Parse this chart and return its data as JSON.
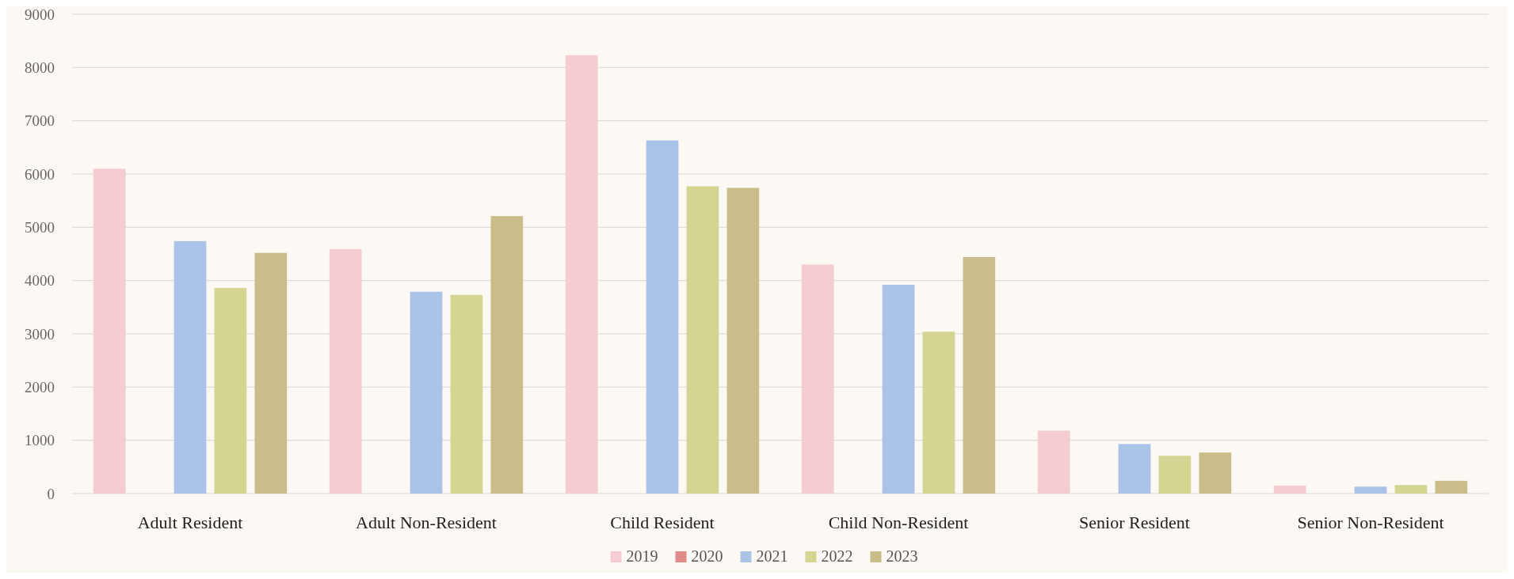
{
  "chart_data": {
    "type": "bar",
    "categories": [
      "Adult Resident",
      "Adult Non-Resident",
      "Child Resident",
      "Child Non-Resident",
      "Senior Resident",
      "Senior Non-Resident"
    ],
    "series": [
      {
        "name": "2019",
        "color": "#f5cdd0",
        "values": [
          6100,
          4590,
          8230,
          4300,
          1180,
          150
        ]
      },
      {
        "name": "2020",
        "color": "#e08a8a",
        "values": [
          null,
          null,
          null,
          null,
          null,
          null
        ]
      },
      {
        "name": "2021",
        "color": "#aac4e8",
        "values": [
          4740,
          3790,
          6630,
          3920,
          930,
          130
        ]
      },
      {
        "name": "2022",
        "color": "#d4d592",
        "values": [
          3860,
          3730,
          5770,
          3040,
          710,
          160
        ]
      },
      {
        "name": "2023",
        "color": "#cbbd8a",
        "values": [
          4520,
          5210,
          5740,
          4440,
          770,
          240
        ]
      }
    ],
    "ylim": [
      0,
      9000
    ],
    "yticks": [
      0,
      1000,
      2000,
      3000,
      4000,
      5000,
      6000,
      7000,
      8000,
      9000
    ],
    "grid": "y",
    "legend": "bottom"
  }
}
